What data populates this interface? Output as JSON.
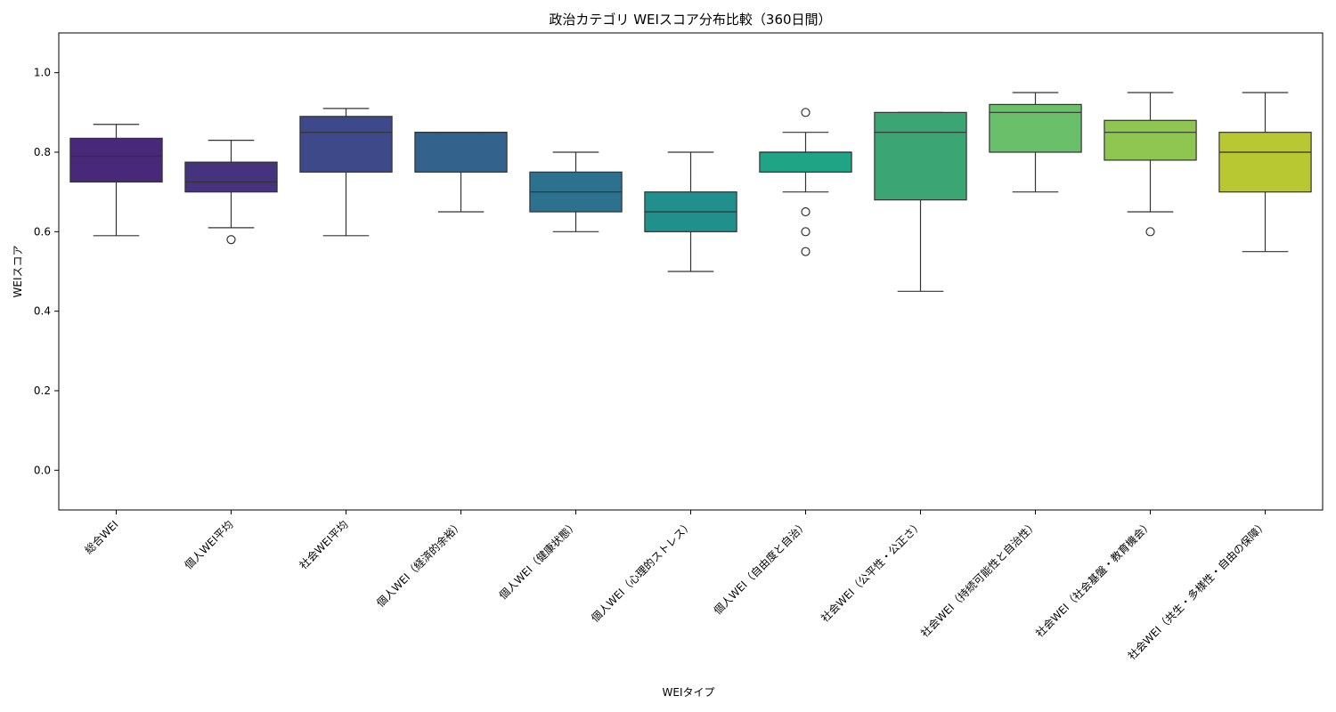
{
  "chart_data": {
    "type": "box",
    "title": "政治カテゴリ WEIスコア分布比較（360日間）",
    "xlabel": "WEIタイプ",
    "ylabel": "WEIスコア",
    "ylim": [
      -0.1,
      1.1
    ],
    "yticks": [
      0.0,
      0.2,
      0.4,
      0.6,
      0.8,
      1.0
    ],
    "ytick_labels": [
      "0.0",
      "0.2",
      "0.4",
      "0.6",
      "0.8",
      "1.0"
    ],
    "grid": false,
    "categories": [
      "総合WEI",
      "個人WEI平均",
      "社会WEI平均",
      "個人WEI（経済的余裕）",
      "個人WEI（健康状態）",
      "個人WEI（心理的ストレス）",
      "個人WEI（自由度と自治）",
      "社会WEI（公平性・公正さ）",
      "社会WEI（持続可能性と自治性）",
      "社会WEI（社会基盤・教育機会）",
      "社会WEI（共生・多様性・自由の保障）"
    ],
    "boxes": [
      {
        "whisker_low": 0.59,
        "q1": 0.725,
        "median": 0.79,
        "q3": 0.835,
        "whisker_high": 0.87,
        "outliers": [],
        "color": "#482878"
      },
      {
        "whisker_low": 0.61,
        "q1": 0.7,
        "median": 0.725,
        "q3": 0.775,
        "whisker_high": 0.83,
        "outliers": [
          0.58
        ],
        "color": "#46337e"
      },
      {
        "whisker_low": 0.59,
        "q1": 0.75,
        "median": 0.85,
        "q3": 0.89,
        "whisker_high": 0.91,
        "outliers": [],
        "color": "#3e4989"
      },
      {
        "whisker_low": 0.65,
        "q1": 0.75,
        "median": 0.85,
        "q3": 0.85,
        "whisker_high": 0.85,
        "outliers": [],
        "color": "#33638d"
      },
      {
        "whisker_low": 0.6,
        "q1": 0.65,
        "median": 0.7,
        "q3": 0.75,
        "whisker_high": 0.8,
        "outliers": [],
        "color": "#2c728e"
      },
      {
        "whisker_low": 0.5,
        "q1": 0.6,
        "median": 0.65,
        "q3": 0.7,
        "whisker_high": 0.8,
        "outliers": [],
        "color": "#21908d"
      },
      {
        "whisker_low": 0.7,
        "q1": 0.75,
        "median": 0.8,
        "q3": 0.8,
        "whisker_high": 0.85,
        "outliers": [
          0.9,
          0.65,
          0.6,
          0.55
        ],
        "color": "#20a486"
      },
      {
        "whisker_low": 0.45,
        "q1": 0.68,
        "median": 0.85,
        "q3": 0.9,
        "whisker_high": 0.9,
        "outliers": [],
        "color": "#3ba673"
      },
      {
        "whisker_low": 0.7,
        "q1": 0.8,
        "median": 0.9,
        "q3": 0.92,
        "whisker_high": 0.95,
        "outliers": [],
        "color": "#6ac06a"
      },
      {
        "whisker_low": 0.65,
        "q1": 0.78,
        "median": 0.85,
        "q3": 0.88,
        "whisker_high": 0.95,
        "outliers": [
          0.6
        ],
        "color": "#8fc652"
      },
      {
        "whisker_low": 0.55,
        "q1": 0.7,
        "median": 0.8,
        "q3": 0.85,
        "whisker_high": 0.95,
        "outliers": [],
        "color": "#b8c832"
      }
    ]
  }
}
